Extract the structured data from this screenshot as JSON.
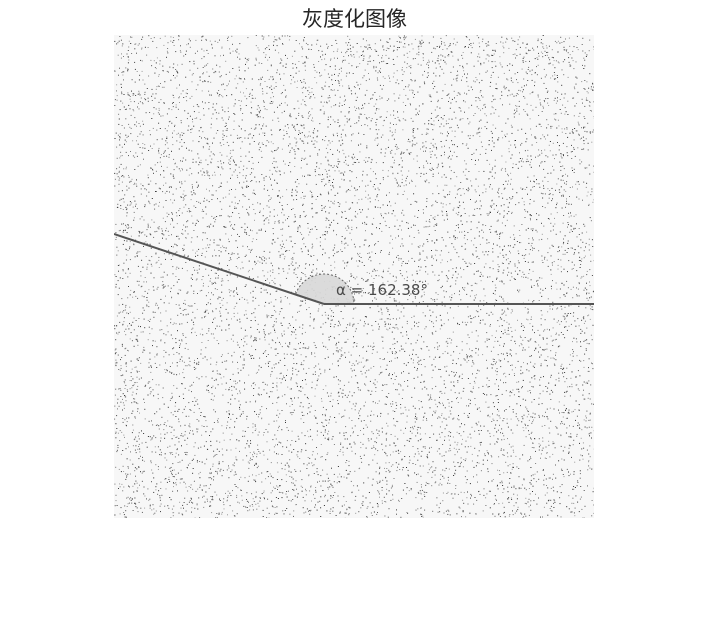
{
  "figure": {
    "title": "灰度化图像"
  },
  "measurement": {
    "angle_label": "α = 162.38°",
    "angle_degrees": 162.38
  },
  "colors": {
    "background": "#ffffff",
    "noise_dots": "#3a3a3a",
    "line": "#555555",
    "arc_fill": "#d9d9d9",
    "label_text": "#4a4a4a"
  }
}
